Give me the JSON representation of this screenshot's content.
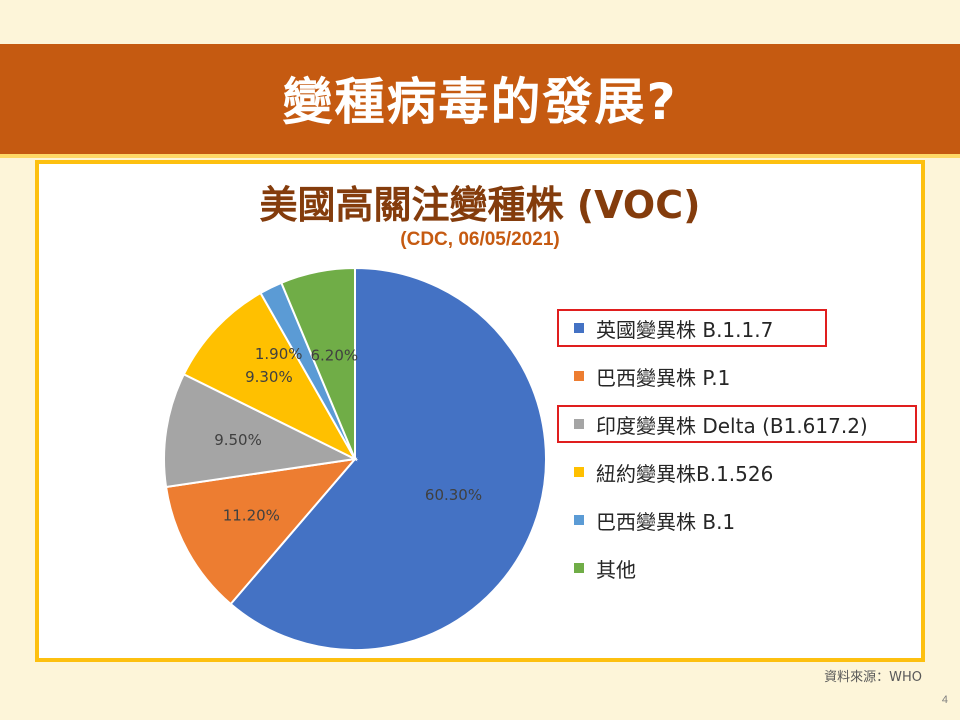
{
  "slide": {
    "title": "變種病毒的發展?",
    "source": "資料來源：WHO",
    "page_number": "4"
  },
  "colors": {
    "banner": "#c55a11",
    "frame": "#fdc010",
    "background": "#fdf5d9",
    "highlight": "#e01e1e",
    "chart_title": "#843c0c"
  },
  "chart_data": {
    "type": "pie",
    "title": "美國高關注變種株 (VOC)",
    "subtitle": "(CDC, 06/05/2021)",
    "legend_position": "right",
    "slices": [
      {
        "label": "英國變異株 B.1.1.7",
        "value": 60.3,
        "display": "60.30%",
        "color": "#4472c4",
        "highlighted": true
      },
      {
        "label": "巴西變異株 P.1",
        "value": 11.2,
        "display": "11.20%",
        "color": "#ed7d31",
        "highlighted": false
      },
      {
        "label": "印度變異株 Delta (B1.617.2)",
        "value": 9.5,
        "display": "9.50%",
        "color": "#a5a5a5",
        "highlighted": true
      },
      {
        "label": "紐約變異株B.1.526",
        "value": 9.3,
        "display": "9.30%",
        "color": "#ffc000",
        "highlighted": false
      },
      {
        "label": "巴西變異株 B.1",
        "value": 1.9,
        "display": "1.90%",
        "color": "#5b9bd5",
        "highlighted": false
      },
      {
        "label": "其他",
        "value": 6.2,
        "display": "6.20%",
        "color": "#70ad47",
        "highlighted": false
      }
    ]
  }
}
